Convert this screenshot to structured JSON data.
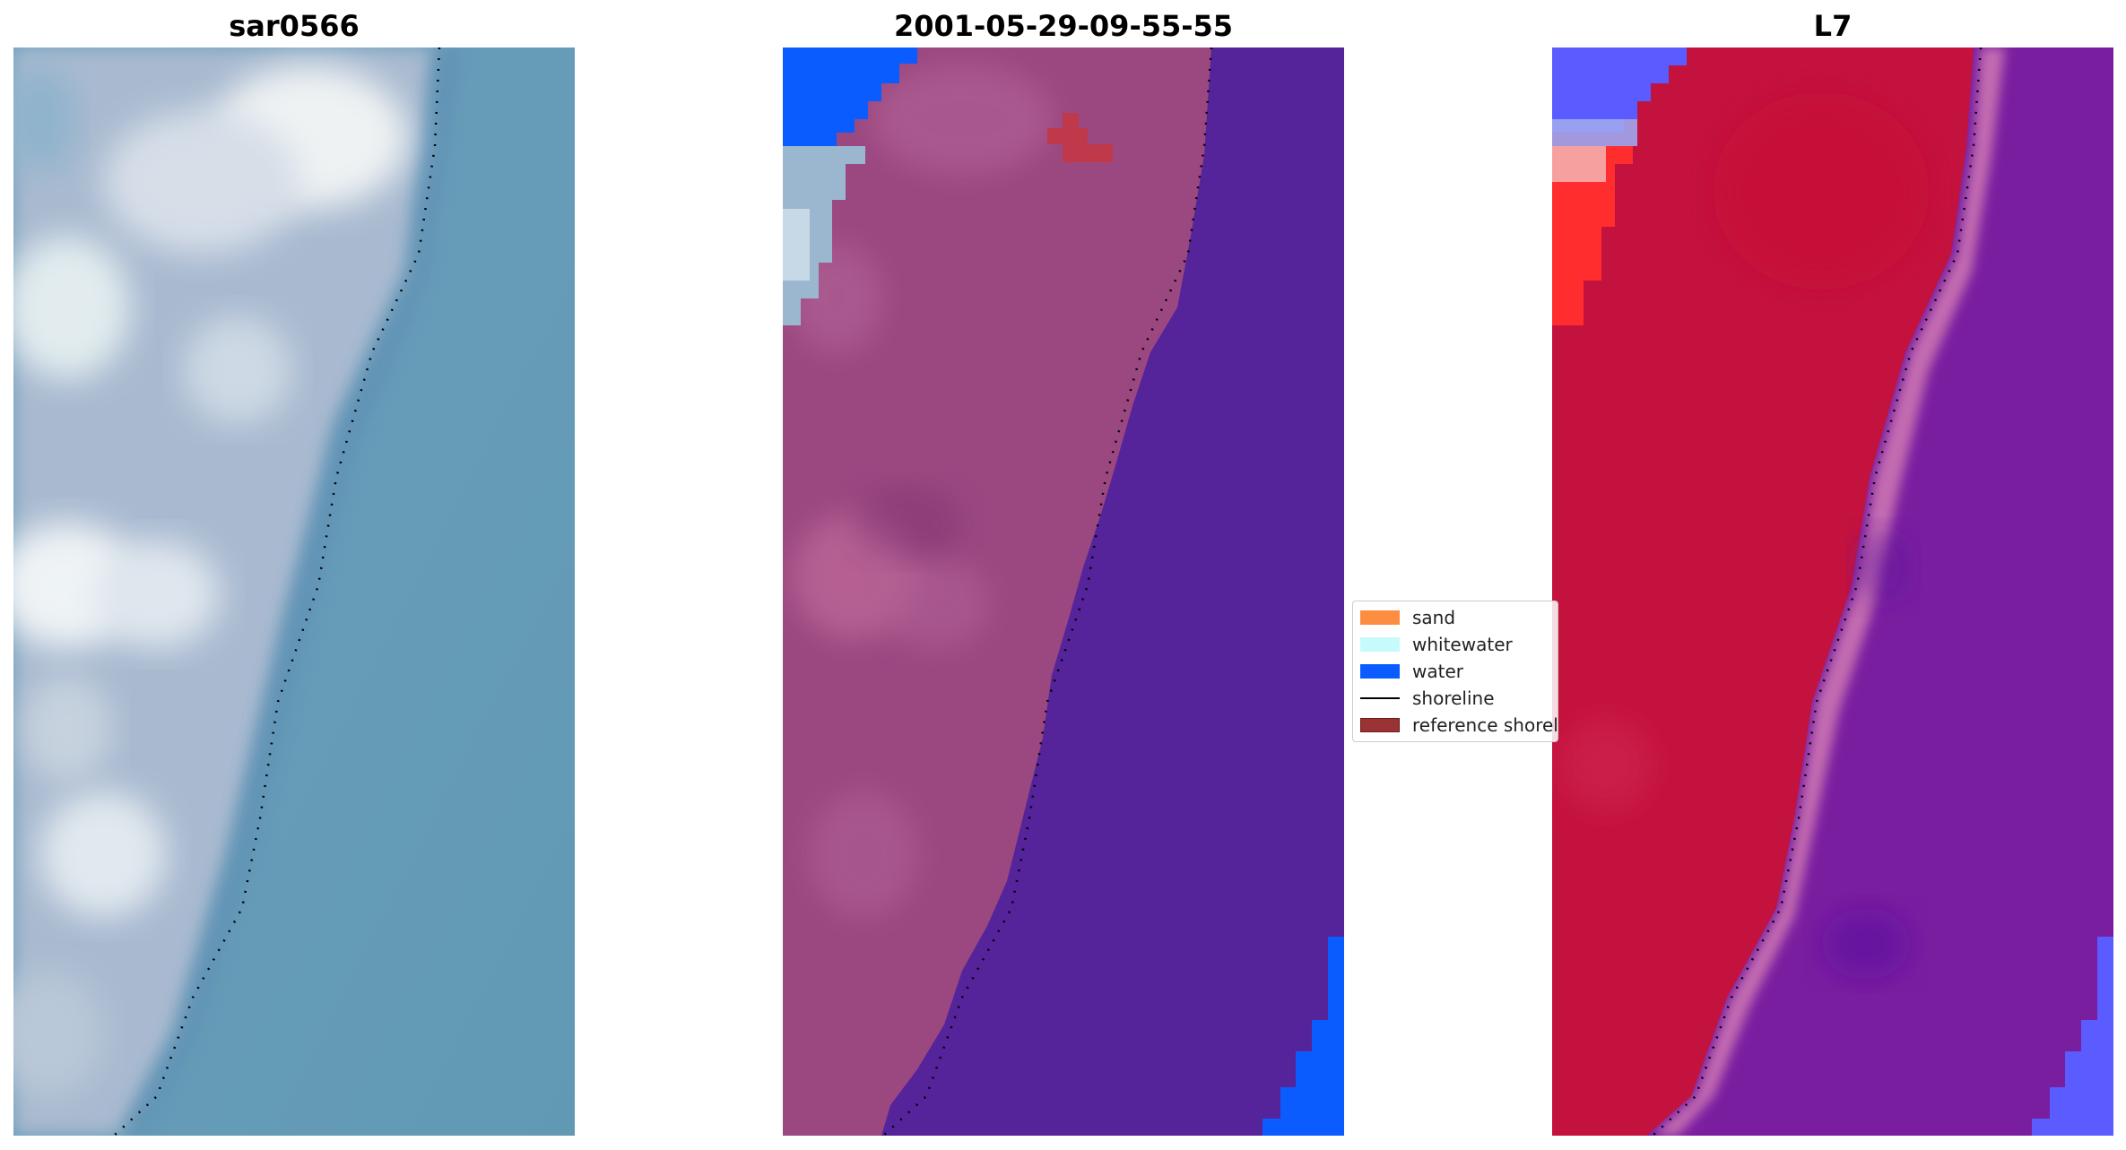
{
  "panels": [
    {
      "title": "sar0566"
    },
    {
      "title": "2001-05-29-09-55-55"
    },
    {
      "title": "L7"
    }
  ],
  "legend": {
    "items": [
      {
        "label": "sand",
        "color": "#fd8e41"
      },
      {
        "label": "whitewater",
        "color": "#c7fbfb"
      },
      {
        "label": "water",
        "color": "#0b5cff"
      },
      {
        "label": "shoreline",
        "color": "#000000"
      },
      {
        "label": "reference shoreline",
        "color": "#9b3233"
      }
    ]
  },
  "colors": {
    "rgb_sea": "#6397b3",
    "rgb_land": "#b8c8da",
    "class_sand": "#9b4880",
    "class_water_overlay": "#55239a",
    "class_water_blue": "#0b5cff",
    "ndvi_land": "#c4123e",
    "ndvi_sea": "#7a1ea0",
    "ndvi_blue": "#5a5cff"
  }
}
